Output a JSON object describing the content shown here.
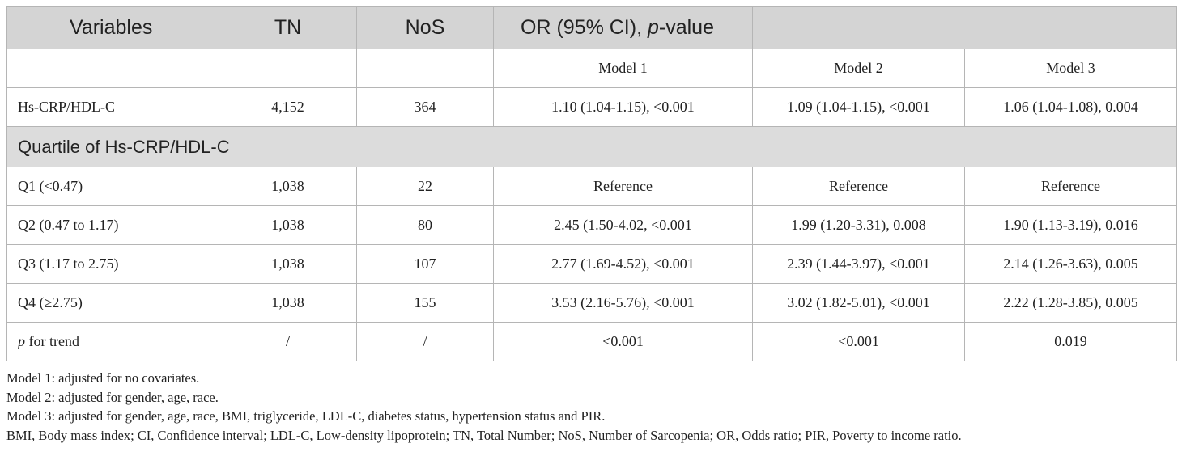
{
  "header": {
    "variables": "Variables",
    "tn": "TN",
    "nos": "NoS",
    "or_prefix": "OR (95% CI), ",
    "or_p": "p",
    "or_suffix": "-value"
  },
  "models": [
    "Model 1",
    "Model 2",
    "Model 3"
  ],
  "hs_row": [
    "Hs-CRP/HDL-C",
    "4,152",
    "364",
    "1.10 (1.04-1.15), <0.001",
    "1.09 (1.04-1.15), <0.001",
    "1.06 (1.04-1.08), 0.004"
  ],
  "section_label": "Quartile of Hs-CRP/HDL-C",
  "quartile_rows": [
    [
      "Q1 (<0.47)",
      "1,038",
      "22",
      "Reference",
      "Reference",
      "Reference"
    ],
    [
      "Q2 (0.47 to 1.17)",
      "1,038",
      "80",
      "2.45 (1.50-4.02, <0.001",
      "1.99 (1.20-3.31), 0.008",
      "1.90 (1.13-3.19), 0.016"
    ],
    [
      "Q3 (1.17 to 2.75)",
      "1,038",
      "107",
      "2.77 (1.69-4.52), <0.001",
      "2.39 (1.44-3.97), <0.001",
      "2.14 (1.26-3.63), 0.005"
    ],
    [
      "Q4 (≥2.75)",
      "1,038",
      "155",
      "3.53 (2.16-5.76), <0.001",
      "3.02 (1.82-5.01), <0.001",
      "2.22 (1.28-3.85), 0.005"
    ]
  ],
  "trend_row": {
    "label_p": "p",
    "label_rest": " for trend",
    "values": [
      "/",
      "/",
      "<0.001",
      "<0.001",
      "0.019"
    ]
  },
  "notes": [
    "Model 1: adjusted for no covariates.",
    "Model 2: adjusted for gender, age, race.",
    "Model 3: adjusted for gender, age, race, BMI, triglyceride, LDL-C, diabetes status, hypertension status and PIR.",
    "BMI, Body mass index; CI, Confidence interval; LDL-C, Low-density lipoprotein; TN, Total Number; NoS, Number of Sarcopenia; OR, Odds ratio; PIR, Poverty to income ratio."
  ]
}
